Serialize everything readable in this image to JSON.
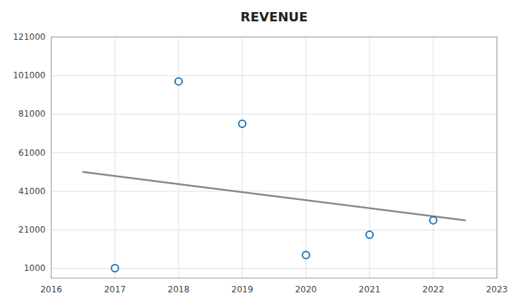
{
  "chart_data": {
    "type": "scatter",
    "title": "REVENUE",
    "series": [
      {
        "type": "scatter",
        "marker": "circle",
        "x": [
          2017,
          2018,
          2019,
          2020,
          2021,
          2022
        ],
        "values": [
          1200,
          98000,
          76000,
          8000,
          18500,
          26000
        ]
      },
      {
        "type": "line",
        "line_style": "solid",
        "x": [
          2016.5,
          2022.5
        ],
        "values": [
          51000,
          26000
        ]
      }
    ],
    "xlim": [
      2016,
      2023
    ],
    "ylim": [
      -4000,
      121000
    ],
    "xticks": [
      2016,
      2017,
      2018,
      2019,
      2020,
      2021,
      2022,
      2023
    ],
    "yticks": [
      1000,
      21000,
      41000,
      61000,
      81000,
      101000,
      121000
    ],
    "grid": true
  }
}
